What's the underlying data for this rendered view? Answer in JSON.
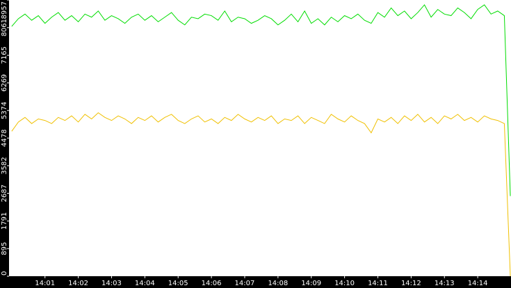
{
  "chart_data": {
    "type": "line",
    "x": [
      0,
      0.2,
      0.4,
      0.6,
      0.8,
      1,
      1.2,
      1.4,
      1.6,
      1.8,
      2,
      2.2,
      2.4,
      2.6,
      2.8,
      3,
      3.2,
      3.4,
      3.6,
      3.8,
      4,
      4.2,
      4.4,
      4.6,
      4.8,
      5,
      5.2,
      5.4,
      5.6,
      5.8,
      6,
      6.2,
      6.4,
      6.6,
      6.8,
      7,
      7.2,
      7.4,
      7.6,
      7.8,
      8,
      8.2,
      8.4,
      8.6,
      8.8,
      9,
      9.2,
      9.4,
      9.6,
      9.8,
      10,
      10.2,
      10.4,
      10.6,
      10.8,
      11,
      11.2,
      11.4,
      11.6,
      11.8,
      12,
      12.2,
      12.4,
      12.6,
      12.8,
      13,
      13.2,
      13.4,
      13.6,
      13.8,
      14,
      14.2,
      14.4,
      14.6,
      14.8,
      14.98
    ],
    "series": [
      {
        "color": "#00dd00",
        "values": [
          8100,
          8350,
          8500,
          8300,
          8450,
          8200,
          8400,
          8550,
          8300,
          8450,
          8250,
          8500,
          8400,
          8600,
          8300,
          8450,
          8350,
          8200,
          8400,
          8500,
          8300,
          8450,
          8250,
          8400,
          8550,
          8300,
          8150,
          8400,
          8350,
          8500,
          8450,
          8300,
          8600,
          8250,
          8400,
          8350,
          8200,
          8300,
          8450,
          8350,
          8150,
          8300,
          8500,
          8250,
          8600,
          8200,
          8350,
          8150,
          8400,
          8250,
          8450,
          8350,
          8500,
          8300,
          8200,
          8550,
          8400,
          8700,
          8450,
          8600,
          8350,
          8550,
          8800,
          8400,
          8650,
          8500,
          8450,
          8700,
          8550,
          8350,
          8650,
          8800,
          8500,
          8600,
          8450,
          2600
        ]
      },
      {
        "color": "#f0c000",
        "values": [
          4700,
          5000,
          5150,
          4950,
          5100,
          5050,
          4950,
          5150,
          5050,
          5200,
          5000,
          5250,
          5100,
          5300,
          5150,
          5050,
          5200,
          5100,
          4950,
          5150,
          5050,
          5200,
          5000,
          5150,
          5250,
          5050,
          4950,
          5100,
          5200,
          5000,
          5100,
          4950,
          5150,
          5050,
          5250,
          5100,
          5000,
          5150,
          5050,
          5200,
          4950,
          5100,
          5050,
          5200,
          4950,
          5150,
          5050,
          4950,
          5250,
          5100,
          5000,
          5200,
          5050,
          4950,
          4650,
          5100,
          5000,
          5150,
          4950,
          5200,
          5050,
          5250,
          5000,
          5150,
          4950,
          5200,
          5100,
          5250,
          5050,
          5150,
          5000,
          5200,
          5100,
          5050,
          4950,
          0
        ]
      }
    ],
    "xlim": [
      -0.08,
      15
    ],
    "xticks": [
      {
        "value": 1,
        "label": "14:01"
      },
      {
        "value": 2,
        "label": "14:02"
      },
      {
        "value": 3,
        "label": "14:03"
      },
      {
        "value": 4,
        "label": "14:04"
      },
      {
        "value": 5,
        "label": "14:05"
      },
      {
        "value": 6,
        "label": "14:06"
      },
      {
        "value": 7,
        "label": "14:07"
      },
      {
        "value": 8,
        "label": "14:08"
      },
      {
        "value": 9,
        "label": "14:09"
      },
      {
        "value": 10,
        "label": "14:10"
      },
      {
        "value": 11,
        "label": "14:11"
      },
      {
        "value": 12,
        "label": "14:12"
      },
      {
        "value": 13,
        "label": "14:13"
      },
      {
        "value": 14,
        "label": "14:14"
      }
    ],
    "ylim": [
      0,
      8957
    ],
    "yticks": [
      0,
      895,
      1791,
      2687,
      3582,
      4478,
      5374,
      6269,
      7165,
      8061,
      8957
    ]
  }
}
